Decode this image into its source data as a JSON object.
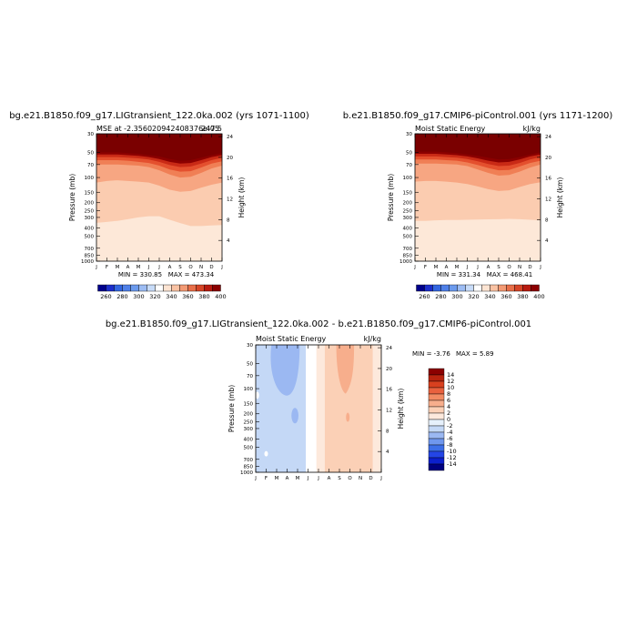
{
  "colors": {
    "mse_levels": [
      "#00008b",
      "#1c2ecb",
      "#3366e0",
      "#6495ed",
      "#a4bff0",
      "#d7e6fb",
      "#ffffff",
      "#fde8d8",
      "#fbccb0",
      "#f7a682",
      "#f07f55",
      "#e4502e",
      "#c92a16",
      "#8b0000"
    ],
    "diff_levels": [
      "#000080",
      "#0c1fcc",
      "#2445e6",
      "#3d6fe8",
      "#6f97ee",
      "#9bb8f2",
      "#c4d8f6",
      "#e6f0fb",
      "#fde9dc",
      "#fbd0b6",
      "#f7ae8c",
      "#f28b63",
      "#e9613e",
      "#d8401f",
      "#b8230e",
      "#8b0000"
    ],
    "axis": "#000000"
  },
  "chart_data": [
    {
      "type": "heatmap",
      "panel": "top-left",
      "title": "bg.e21.B1850.f09_g17.LIGtransient_122.0ka.002 (yrs 1071-1100)",
      "left_string": "MSE at -2.356020942408376e-05",
      "right_string": "247.5",
      "ylabel": "Pressure (mb)",
      "right_ylabel": "Height (km)",
      "x_ticks": [
        "J",
        "F",
        "M",
        "A",
        "M",
        "J",
        "J",
        "A",
        "S",
        "O",
        "N",
        "D",
        "J"
      ],
      "pressure_ticks": [
        "30",
        "50",
        "70",
        "100",
        "150",
        "200",
        "250",
        "300",
        "400",
        "500",
        "700",
        "850",
        "1000"
      ],
      "height_ticks": [
        "24",
        "20",
        "16",
        "12",
        "8",
        "4"
      ],
      "min_label": "MIN = 330.85",
      "max_label": "MAX = 473.34",
      "contour_levels": [
        260,
        270,
        280,
        290,
        300,
        310,
        320,
        330,
        340,
        350,
        360,
        370,
        380,
        390,
        400
      ],
      "labelbar_labels": [
        "260",
        "280",
        "300",
        "320",
        "340",
        "360",
        "380",
        "400"
      ],
      "boundaries_mb": {
        "340": [
          348,
          340,
          330,
          315,
          300,
          290,
          290,
          320,
          350,
          380,
          380,
          375,
          370
        ],
        "350": [
          115,
          110,
          108,
          110,
          112,
          115,
          125,
          140,
          148,
          145,
          132,
          122,
          115
        ],
        "360": [
          70,
          70,
          70,
          71,
          72,
          75,
          82,
          92,
          100,
          98,
          88,
          78,
          72
        ],
        "370": [
          62,
          62,
          62,
          63,
          65,
          67,
          72,
          80,
          85,
          84,
          76,
          68,
          64
        ],
        "380": [
          57,
          57,
          57,
          58,
          59,
          61,
          65,
          71,
          75,
          74,
          68,
          62,
          58
        ],
        "390": [
          53,
          53,
          53,
          54,
          55,
          57,
          60,
          65,
          68,
          67,
          62,
          57,
          54
        ],
        "400": [
          50,
          50,
          50,
          51,
          52,
          54,
          56,
          60,
          63,
          62,
          58,
          54,
          51
        ]
      }
    },
    {
      "type": "heatmap",
      "panel": "top-right",
      "title": "b.e21.B1850.f09_g17.CMIP6-piControl.001 (yrs 1171-1200)",
      "left_string": "Moist Static Energy",
      "right_string": "kJ/kg",
      "ylabel": "Pressure (mb)",
      "right_ylabel": "Height (km)",
      "x_ticks": [
        "J",
        "F",
        "M",
        "A",
        "M",
        "J",
        "J",
        "A",
        "S",
        "O",
        "N",
        "D",
        "J"
      ],
      "pressure_ticks": [
        "30",
        "50",
        "70",
        "100",
        "150",
        "200",
        "250",
        "300",
        "400",
        "500",
        "700",
        "850",
        "1000"
      ],
      "height_ticks": [
        "24",
        "20",
        "16",
        "12",
        "8",
        "4"
      ],
      "min_label": "MIN = 331.34",
      "max_label": "MAX = 468.41",
      "contour_levels": [
        260,
        270,
        280,
        290,
        300,
        310,
        320,
        330,
        340,
        350,
        360,
        370,
        380,
        390,
        400
      ],
      "labelbar_labels": [
        "260",
        "280",
        "300",
        "320",
        "340",
        "360",
        "380",
        "400"
      ],
      "boundaries_mb": {
        "340": [
          330,
          330,
          325,
          322,
          322,
          320,
          318,
          316,
          315,
          312,
          315,
          320,
          325
        ],
        "350": [
          112,
          110,
          110,
          112,
          115,
          120,
          128,
          138,
          145,
          142,
          130,
          120,
          114
        ],
        "360": [
          68,
          68,
          68,
          69,
          70,
          73,
          80,
          88,
          95,
          93,
          85,
          76,
          70
        ],
        "370": [
          61,
          61,
          61,
          62,
          63,
          66,
          71,
          77,
          82,
          81,
          74,
          67,
          63
        ],
        "380": [
          56,
          56,
          56,
          57,
          58,
          60,
          64,
          69,
          73,
          72,
          67,
          61,
          57
        ],
        "390": [
          52,
          52,
          52,
          53,
          54,
          56,
          59,
          63,
          66,
          65,
          61,
          56,
          53
        ],
        "400": [
          49,
          49,
          49,
          50,
          51,
          53,
          55,
          58,
          61,
          60,
          57,
          53,
          50
        ]
      }
    },
    {
      "type": "heatmap",
      "panel": "bottom-center",
      "title": "bg.e21.B1850.f09_g17.LIGtransient_122.0ka.002 - b.e21.B1850.f09_g17.CMIP6-piControl.001",
      "left_string": "Moist Static Energy",
      "right_string": "kJ/kg",
      "ylabel": "Pressure (mb)",
      "right_ylabel": "Height (km)",
      "x_ticks": [
        "J",
        "F",
        "M",
        "A",
        "M",
        "J",
        "J",
        "A",
        "S",
        "O",
        "N",
        "D",
        "J"
      ],
      "pressure_ticks": [
        "30",
        "50",
        "70",
        "100",
        "150",
        "200",
        "250",
        "300",
        "400",
        "500",
        "700",
        "850",
        "1000"
      ],
      "height_ticks": [
        "24",
        "20",
        "16",
        "12",
        "8",
        "4"
      ],
      "min_label": "MIN = -3.76",
      "max_label": "MAX = 5.89",
      "contour_levels": [
        -14,
        -12,
        -10,
        -8,
        -6,
        -4,
        -2,
        0,
        2,
        4,
        6,
        8,
        10,
        12,
        14
      ],
      "labelbar_labels": [
        "14",
        "12",
        "10",
        "8",
        "6",
        "4",
        "2",
        "0",
        "-2",
        "-4",
        "-6",
        "-8",
        "-10",
        "-12",
        "-14"
      ],
      "regions_months": {
        "neg2_to_0_end": 4.8,
        "zero_to_2_end": 5.8,
        "two_to_4_end": 11.2,
        "blue_blob": [
          1.5,
          40,
          4.2,
          110
        ],
        "blue_small": [
          3.5,
          170,
          4.0,
          260
        ],
        "red_blob": [
          7.7,
          30,
          9.4,
          110
        ]
      }
    }
  ]
}
